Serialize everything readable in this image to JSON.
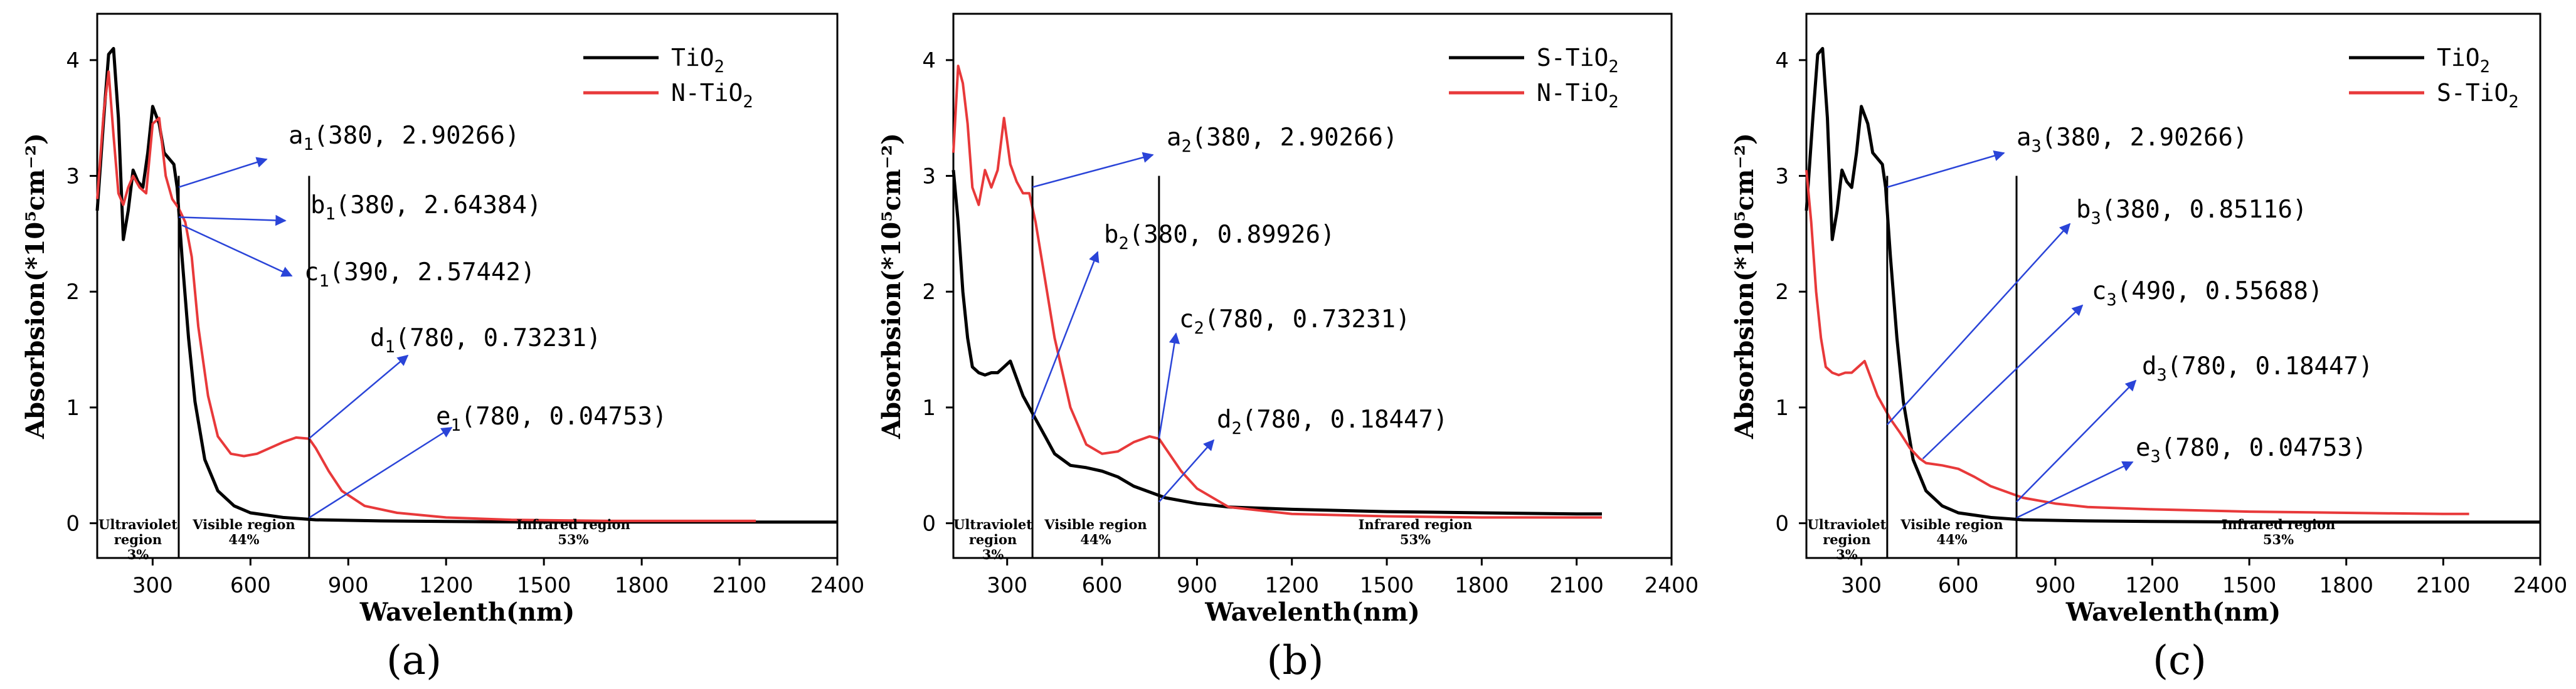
{
  "chart_data": [
    {
      "type": "line",
      "panel": "(a)",
      "xlabel": "Wavelenth(nm)",
      "ylabel": "Absorbsion(*10⁵cm⁻²)",
      "xlim": [
        130,
        2400
      ],
      "ylim": [
        -0.3,
        4.4
      ],
      "xticks": [
        300,
        600,
        900,
        1200,
        1500,
        1800,
        2100,
        2400
      ],
      "yticks": [
        0,
        1,
        2,
        3,
        4
      ],
      "legend": [
        {
          "name": "TiO",
          "sub": "2",
          "color": "#000000"
        },
        {
          "name": "N-TiO",
          "sub": "2",
          "color": "#e8393a"
        }
      ],
      "series": [
        {
          "name": "TiO2",
          "color": "#000000",
          "x": [
            130,
            150,
            165,
            180,
            195,
            210,
            225,
            240,
            255,
            270,
            285,
            300,
            320,
            335,
            350,
            365,
            375,
            390,
            410,
            430,
            460,
            500,
            550,
            600,
            700,
            800,
            1000,
            1200,
            1500,
            1800,
            2100,
            2400
          ],
          "y": [
            2.7,
            3.5,
            4.05,
            4.1,
            3.5,
            2.45,
            2.7,
            3.05,
            2.95,
            2.9,
            3.2,
            3.6,
            3.45,
            3.2,
            3.15,
            3.1,
            2.9,
            2.3,
            1.6,
            1.05,
            0.55,
            0.28,
            0.15,
            0.09,
            0.05,
            0.03,
            0.02,
            0.015,
            0.01,
            0.01,
            0.01,
            0.01
          ]
        },
        {
          "name": "N-TiO2",
          "color": "#e8393a",
          "x": [
            130,
            150,
            165,
            180,
            195,
            210,
            225,
            240,
            260,
            280,
            300,
            320,
            340,
            360,
            380,
            400,
            420,
            440,
            470,
            500,
            540,
            580,
            620,
            660,
            700,
            740,
            780,
            800,
            840,
            880,
            950,
            1050,
            1200,
            1400,
            1700,
            2000,
            2150
          ],
          "y": [
            2.8,
            3.55,
            3.9,
            3.35,
            2.85,
            2.75,
            2.9,
            3.0,
            2.9,
            2.85,
            3.45,
            3.5,
            3.0,
            2.8,
            2.72,
            2.6,
            2.3,
            1.7,
            1.1,
            0.75,
            0.6,
            0.58,
            0.6,
            0.65,
            0.7,
            0.74,
            0.73,
            0.65,
            0.45,
            0.28,
            0.15,
            0.09,
            0.05,
            0.03,
            0.02,
            0.02,
            0.02
          ]
        }
      ],
      "dividers": [
        380,
        780
      ],
      "regions": [
        {
          "label": "Ultraviolet",
          "label2": "region",
          "pct": "3%"
        },
        {
          "label": "Visible region",
          "label2": "",
          "pct": "44%"
        },
        {
          "label": "Infrared region",
          "label2": "",
          "pct": "53%"
        }
      ],
      "annotations": [
        {
          "letter": "a",
          "sub": "1",
          "text": "(380, 2.90266)"
        },
        {
          "letter": "b",
          "sub": "1",
          "text": "(380, 2.64384)"
        },
        {
          "letter": "c",
          "sub": "1",
          "text": "(390, 2.57442)"
        },
        {
          "letter": "d",
          "sub": "1",
          "text": "(780, 0.73231)"
        },
        {
          "letter": "e",
          "sub": "1",
          "text": "(780, 0.04753)"
        }
      ]
    },
    {
      "type": "line",
      "panel": "(b)",
      "xlabel": "Wavelenth(nm)",
      "ylabel": "Absorbsion(*10⁵cm⁻²)",
      "xlim": [
        130,
        2400
      ],
      "ylim": [
        -0.3,
        4.4
      ],
      "xticks": [
        300,
        600,
        900,
        1200,
        1500,
        1800,
        2100,
        2400
      ],
      "yticks": [
        0,
        1,
        2,
        3,
        4
      ],
      "legend": [
        {
          "name": "S-TiO",
          "sub": "2",
          "color": "#000000"
        },
        {
          "name": "N-TiO",
          "sub": "2",
          "color": "#e8393a"
        }
      ],
      "series": [
        {
          "name": "S-TiO2",
          "color": "#000000",
          "x": [
            130,
            145,
            160,
            175,
            190,
            210,
            230,
            250,
            270,
            290,
            310,
            330,
            350,
            370,
            390,
            420,
            450,
            500,
            550,
            600,
            650,
            700,
            800,
            900,
            1000,
            1200,
            1500,
            1800,
            2100,
            2180
          ],
          "y": [
            3.05,
            2.6,
            2.0,
            1.6,
            1.35,
            1.3,
            1.28,
            1.3,
            1.3,
            1.35,
            1.4,
            1.25,
            1.1,
            1.0,
            0.9,
            0.75,
            0.6,
            0.5,
            0.48,
            0.45,
            0.4,
            0.32,
            0.22,
            0.17,
            0.14,
            0.12,
            0.1,
            0.09,
            0.08,
            0.08
          ]
        },
        {
          "name": "N-TiO2",
          "color": "#e8393a",
          "x": [
            130,
            145,
            160,
            175,
            190,
            210,
            230,
            250,
            270,
            290,
            310,
            330,
            350,
            370,
            390,
            420,
            450,
            500,
            550,
            600,
            650,
            700,
            750,
            780,
            800,
            850,
            900,
            1000,
            1200,
            1500,
            1800,
            2100,
            2180
          ],
          "y": [
            3.2,
            3.95,
            3.8,
            3.45,
            2.9,
            2.75,
            3.05,
            2.9,
            3.05,
            3.5,
            3.1,
            2.95,
            2.85,
            2.85,
            2.6,
            2.1,
            1.6,
            1.0,
            0.68,
            0.6,
            0.62,
            0.7,
            0.75,
            0.73,
            0.65,
            0.45,
            0.3,
            0.14,
            0.08,
            0.06,
            0.05,
            0.05,
            0.05
          ]
        }
      ],
      "dividers": [
        380,
        780
      ],
      "regions": [
        {
          "label": "Ultraviolet",
          "label2": "region",
          "pct": "3%"
        },
        {
          "label": "Visible region",
          "label2": "",
          "pct": "44%"
        },
        {
          "label": "Infrared region",
          "label2": "",
          "pct": "53%"
        }
      ],
      "annotations": [
        {
          "letter": "a",
          "sub": "2",
          "text": "(380, 2.90266)"
        },
        {
          "letter": "b",
          "sub": "2",
          "text": "(380, 0.89926)"
        },
        {
          "letter": "c",
          "sub": "2",
          "text": "(780, 0.73231)"
        },
        {
          "letter": "d",
          "sub": "2",
          "text": "(780, 0.18447)"
        }
      ]
    },
    {
      "type": "line",
      "panel": "(c)",
      "xlabel": "Wavelenth(nm)",
      "ylabel": "Absorbsion(*10⁵cm⁻²)",
      "xlim": [
        130,
        2400
      ],
      "ylim": [
        -0.3,
        4.4
      ],
      "xticks": [
        300,
        600,
        900,
        1200,
        1500,
        1800,
        2100,
        2400
      ],
      "yticks": [
        0,
        1,
        2,
        3,
        4
      ],
      "legend": [
        {
          "name": "TiO",
          "sub": "2",
          "color": "#000000"
        },
        {
          "name": "S-TiO",
          "sub": "2",
          "color": "#e8393a"
        }
      ],
      "series": [
        {
          "name": "TiO2",
          "color": "#000000",
          "x": [
            130,
            150,
            165,
            180,
            195,
            210,
            225,
            240,
            255,
            270,
            285,
            300,
            320,
            335,
            350,
            365,
            375,
            390,
            410,
            430,
            460,
            500,
            550,
            600,
            700,
            800,
            1000,
            1200,
            1500,
            1800,
            2100,
            2400
          ],
          "y": [
            2.7,
            3.5,
            4.05,
            4.1,
            3.5,
            2.45,
            2.7,
            3.05,
            2.95,
            2.9,
            3.2,
            3.6,
            3.45,
            3.2,
            3.15,
            3.1,
            2.9,
            2.3,
            1.6,
            1.05,
            0.55,
            0.28,
            0.15,
            0.09,
            0.05,
            0.03,
            0.02,
            0.015,
            0.01,
            0.01,
            0.01,
            0.01
          ]
        },
        {
          "name": "S-TiO2",
          "color": "#e8393a",
          "x": [
            130,
            145,
            160,
            175,
            190,
            210,
            230,
            250,
            270,
            290,
            310,
            330,
            350,
            370,
            390,
            420,
            450,
            480,
            500,
            550,
            600,
            650,
            700,
            800,
            900,
            1000,
            1200,
            1500,
            1800,
            2100,
            2180
          ],
          "y": [
            3.05,
            2.6,
            2.0,
            1.6,
            1.35,
            1.3,
            1.28,
            1.3,
            1.3,
            1.35,
            1.4,
            1.25,
            1.1,
            1.0,
            0.9,
            0.78,
            0.65,
            0.56,
            0.52,
            0.5,
            0.47,
            0.4,
            0.32,
            0.22,
            0.17,
            0.14,
            0.12,
            0.1,
            0.09,
            0.08,
            0.08
          ]
        }
      ],
      "dividers": [
        380,
        780
      ],
      "regions": [
        {
          "label": "Ultraviolet",
          "label2": "region",
          "pct": "3%"
        },
        {
          "label": "Visible region",
          "label2": "",
          "pct": "44%"
        },
        {
          "label": "Infrared region",
          "label2": "",
          "pct": "53%"
        }
      ],
      "annotations": [
        {
          "letter": "a",
          "sub": "3",
          "text": "(380, 2.90266)"
        },
        {
          "letter": "b",
          "sub": "3",
          "text": "(380, 0.85116)"
        },
        {
          "letter": "c",
          "sub": "3",
          "text": "(490, 0.55688)"
        },
        {
          "letter": "d",
          "sub": "3",
          "text": "(780, 0.18447)"
        },
        {
          "letter": "e",
          "sub": "3",
          "text": "(780, 0.04753)"
        }
      ]
    }
  ]
}
